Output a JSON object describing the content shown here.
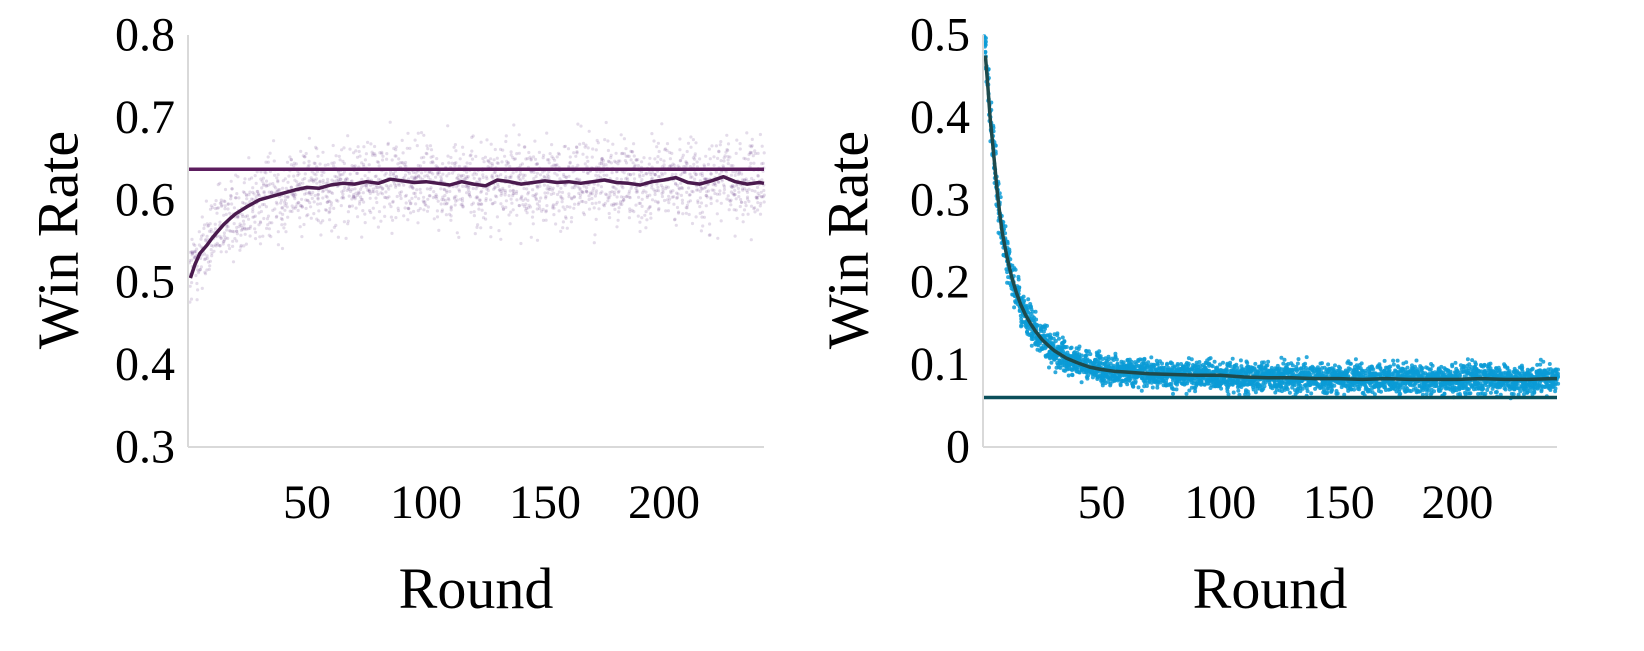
{
  "chart_data": [
    {
      "type": "scatter",
      "xlabel": "Round",
      "ylabel": "Win Rate",
      "xlim": [
        0,
        242
      ],
      "ylim": [
        0.3,
        0.8
      ],
      "xticks": [
        50,
        100,
        150,
        200
      ],
      "xtick_labels": [
        "50",
        "100",
        "150",
        "200"
      ],
      "yticks": [
        0.3,
        0.4,
        0.5,
        0.6,
        0.7,
        0.8
      ],
      "ytick_labels": [
        "0.3",
        "0.4",
        "0.5",
        "0.6",
        "0.7",
        "0.8"
      ],
      "grid": false,
      "colors": {
        "points": "#6a3d8a",
        "mean_line": "#4a1a4e",
        "reference_line": "#5c1d5e",
        "axis": "#d9d9d9"
      },
      "reference_line": 0.637,
      "scatter_spread": 0.065,
      "series": [
        {
          "style": "mean_line",
          "x": [
            1,
            3,
            5,
            8,
            10,
            12,
            15,
            18,
            20,
            25,
            30,
            35,
            40,
            45,
            50,
            55,
            60,
            65,
            70,
            75,
            80,
            85,
            90,
            95,
            100,
            105,
            110,
            115,
            120,
            125,
            130,
            135,
            140,
            145,
            150,
            155,
            160,
            165,
            170,
            175,
            180,
            185,
            190,
            195,
            200,
            205,
            210,
            215,
            220,
            225,
            230,
            235,
            240,
            242
          ],
          "y": [
            0.505,
            0.522,
            0.535,
            0.545,
            0.553,
            0.56,
            0.57,
            0.578,
            0.583,
            0.592,
            0.6,
            0.604,
            0.608,
            0.612,
            0.615,
            0.614,
            0.618,
            0.62,
            0.619,
            0.622,
            0.62,
            0.625,
            0.623,
            0.621,
            0.622,
            0.62,
            0.618,
            0.622,
            0.619,
            0.617,
            0.624,
            0.622,
            0.619,
            0.621,
            0.623,
            0.621,
            0.622,
            0.62,
            0.622,
            0.624,
            0.621,
            0.62,
            0.618,
            0.622,
            0.624,
            0.627,
            0.621,
            0.619,
            0.623,
            0.628,
            0.622,
            0.619,
            0.621,
            0.62
          ]
        }
      ]
    },
    {
      "type": "scatter",
      "xlabel": "Round",
      "ylabel": "Win Rate",
      "xlim": [
        0,
        242
      ],
      "ylim": [
        0,
        0.5
      ],
      "xticks": [
        50,
        100,
        150,
        200
      ],
      "xtick_labels": [
        "50",
        "100",
        "150",
        "200"
      ],
      "yticks": [
        0,
        0.1,
        0.2,
        0.3,
        0.4,
        0.5
      ],
      "ytick_labels": [
        "0",
        "0.1",
        "0.2",
        "0.3",
        "0.4",
        "0.5"
      ],
      "grid": false,
      "colors": {
        "points": "#0a9bd6",
        "mean_line": "#1e4a4c",
        "reference_line": "#0b4f5a",
        "axis": "#d9d9d9"
      },
      "reference_line": 0.06,
      "scatter_spread": 0.028,
      "series": [
        {
          "style": "mean_line",
          "x": [
            1,
            2,
            3,
            4,
            5,
            6,
            7,
            8,
            10,
            12,
            14,
            16,
            18,
            20,
            22,
            25,
            28,
            30,
            35,
            40,
            45,
            50,
            55,
            60,
            70,
            80,
            90,
            100,
            110,
            120,
            130,
            140,
            150,
            160,
            170,
            180,
            190,
            200,
            210,
            220,
            230,
            240,
            242
          ],
          "y": [
            0.475,
            0.44,
            0.4,
            0.37,
            0.34,
            0.31,
            0.285,
            0.262,
            0.232,
            0.207,
            0.188,
            0.172,
            0.16,
            0.15,
            0.141,
            0.13,
            0.122,
            0.117,
            0.108,
            0.102,
            0.097,
            0.094,
            0.092,
            0.091,
            0.089,
            0.088,
            0.087,
            0.087,
            0.085,
            0.084,
            0.084,
            0.083,
            0.083,
            0.082,
            0.083,
            0.082,
            0.082,
            0.082,
            0.083,
            0.082,
            0.082,
            0.083,
            0.083
          ]
        }
      ]
    }
  ]
}
